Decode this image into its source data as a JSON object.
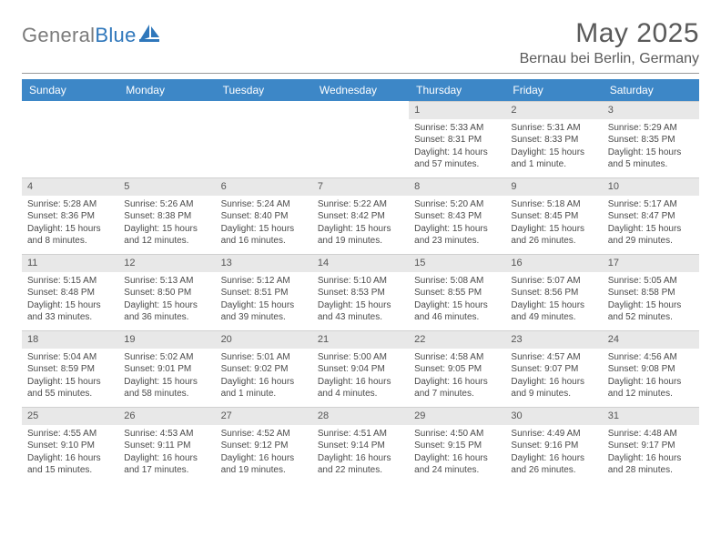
{
  "logo": {
    "word1": "General",
    "word2": "Blue",
    "shape_color": "#2f77bb",
    "text1_color": "#7b7b7b",
    "text2_color": "#2f77bb"
  },
  "title": "May 2025",
  "location": "Bernau bei Berlin, Germany",
  "header_bg": "#3d87c7",
  "header_text": "#ffffff",
  "daynum_bg": "#e8e8e8",
  "page_bg": "#ffffff",
  "dow": [
    "Sunday",
    "Monday",
    "Tuesday",
    "Wednesday",
    "Thursday",
    "Friday",
    "Saturday"
  ],
  "weeks": [
    [
      null,
      null,
      null,
      null,
      {
        "n": "1",
        "sr": "5:33 AM",
        "ss": "8:31 PM",
        "dl": "14 hours and 57 minutes."
      },
      {
        "n": "2",
        "sr": "5:31 AM",
        "ss": "8:33 PM",
        "dl": "15 hours and 1 minute."
      },
      {
        "n": "3",
        "sr": "5:29 AM",
        "ss": "8:35 PM",
        "dl": "15 hours and 5 minutes."
      }
    ],
    [
      {
        "n": "4",
        "sr": "5:28 AM",
        "ss": "8:36 PM",
        "dl": "15 hours and 8 minutes."
      },
      {
        "n": "5",
        "sr": "5:26 AM",
        "ss": "8:38 PM",
        "dl": "15 hours and 12 minutes."
      },
      {
        "n": "6",
        "sr": "5:24 AM",
        "ss": "8:40 PM",
        "dl": "15 hours and 16 minutes."
      },
      {
        "n": "7",
        "sr": "5:22 AM",
        "ss": "8:42 PM",
        "dl": "15 hours and 19 minutes."
      },
      {
        "n": "8",
        "sr": "5:20 AM",
        "ss": "8:43 PM",
        "dl": "15 hours and 23 minutes."
      },
      {
        "n": "9",
        "sr": "5:18 AM",
        "ss": "8:45 PM",
        "dl": "15 hours and 26 minutes."
      },
      {
        "n": "10",
        "sr": "5:17 AM",
        "ss": "8:47 PM",
        "dl": "15 hours and 29 minutes."
      }
    ],
    [
      {
        "n": "11",
        "sr": "5:15 AM",
        "ss": "8:48 PM",
        "dl": "15 hours and 33 minutes."
      },
      {
        "n": "12",
        "sr": "5:13 AM",
        "ss": "8:50 PM",
        "dl": "15 hours and 36 minutes."
      },
      {
        "n": "13",
        "sr": "5:12 AM",
        "ss": "8:51 PM",
        "dl": "15 hours and 39 minutes."
      },
      {
        "n": "14",
        "sr": "5:10 AM",
        "ss": "8:53 PM",
        "dl": "15 hours and 43 minutes."
      },
      {
        "n": "15",
        "sr": "5:08 AM",
        "ss": "8:55 PM",
        "dl": "15 hours and 46 minutes."
      },
      {
        "n": "16",
        "sr": "5:07 AM",
        "ss": "8:56 PM",
        "dl": "15 hours and 49 minutes."
      },
      {
        "n": "17",
        "sr": "5:05 AM",
        "ss": "8:58 PM",
        "dl": "15 hours and 52 minutes."
      }
    ],
    [
      {
        "n": "18",
        "sr": "5:04 AM",
        "ss": "8:59 PM",
        "dl": "15 hours and 55 minutes."
      },
      {
        "n": "19",
        "sr": "5:02 AM",
        "ss": "9:01 PM",
        "dl": "15 hours and 58 minutes."
      },
      {
        "n": "20",
        "sr": "5:01 AM",
        "ss": "9:02 PM",
        "dl": "16 hours and 1 minute."
      },
      {
        "n": "21",
        "sr": "5:00 AM",
        "ss": "9:04 PM",
        "dl": "16 hours and 4 minutes."
      },
      {
        "n": "22",
        "sr": "4:58 AM",
        "ss": "9:05 PM",
        "dl": "16 hours and 7 minutes."
      },
      {
        "n": "23",
        "sr": "4:57 AM",
        "ss": "9:07 PM",
        "dl": "16 hours and 9 minutes."
      },
      {
        "n": "24",
        "sr": "4:56 AM",
        "ss": "9:08 PM",
        "dl": "16 hours and 12 minutes."
      }
    ],
    [
      {
        "n": "25",
        "sr": "4:55 AM",
        "ss": "9:10 PM",
        "dl": "16 hours and 15 minutes."
      },
      {
        "n": "26",
        "sr": "4:53 AM",
        "ss": "9:11 PM",
        "dl": "16 hours and 17 minutes."
      },
      {
        "n": "27",
        "sr": "4:52 AM",
        "ss": "9:12 PM",
        "dl": "16 hours and 19 minutes."
      },
      {
        "n": "28",
        "sr": "4:51 AM",
        "ss": "9:14 PM",
        "dl": "16 hours and 22 minutes."
      },
      {
        "n": "29",
        "sr": "4:50 AM",
        "ss": "9:15 PM",
        "dl": "16 hours and 24 minutes."
      },
      {
        "n": "30",
        "sr": "4:49 AM",
        "ss": "9:16 PM",
        "dl": "16 hours and 26 minutes."
      },
      {
        "n": "31",
        "sr": "4:48 AM",
        "ss": "9:17 PM",
        "dl": "16 hours and 28 minutes."
      }
    ]
  ],
  "labels": {
    "sunrise": "Sunrise: ",
    "sunset": "Sunset: ",
    "daylight": "Daylight: "
  }
}
